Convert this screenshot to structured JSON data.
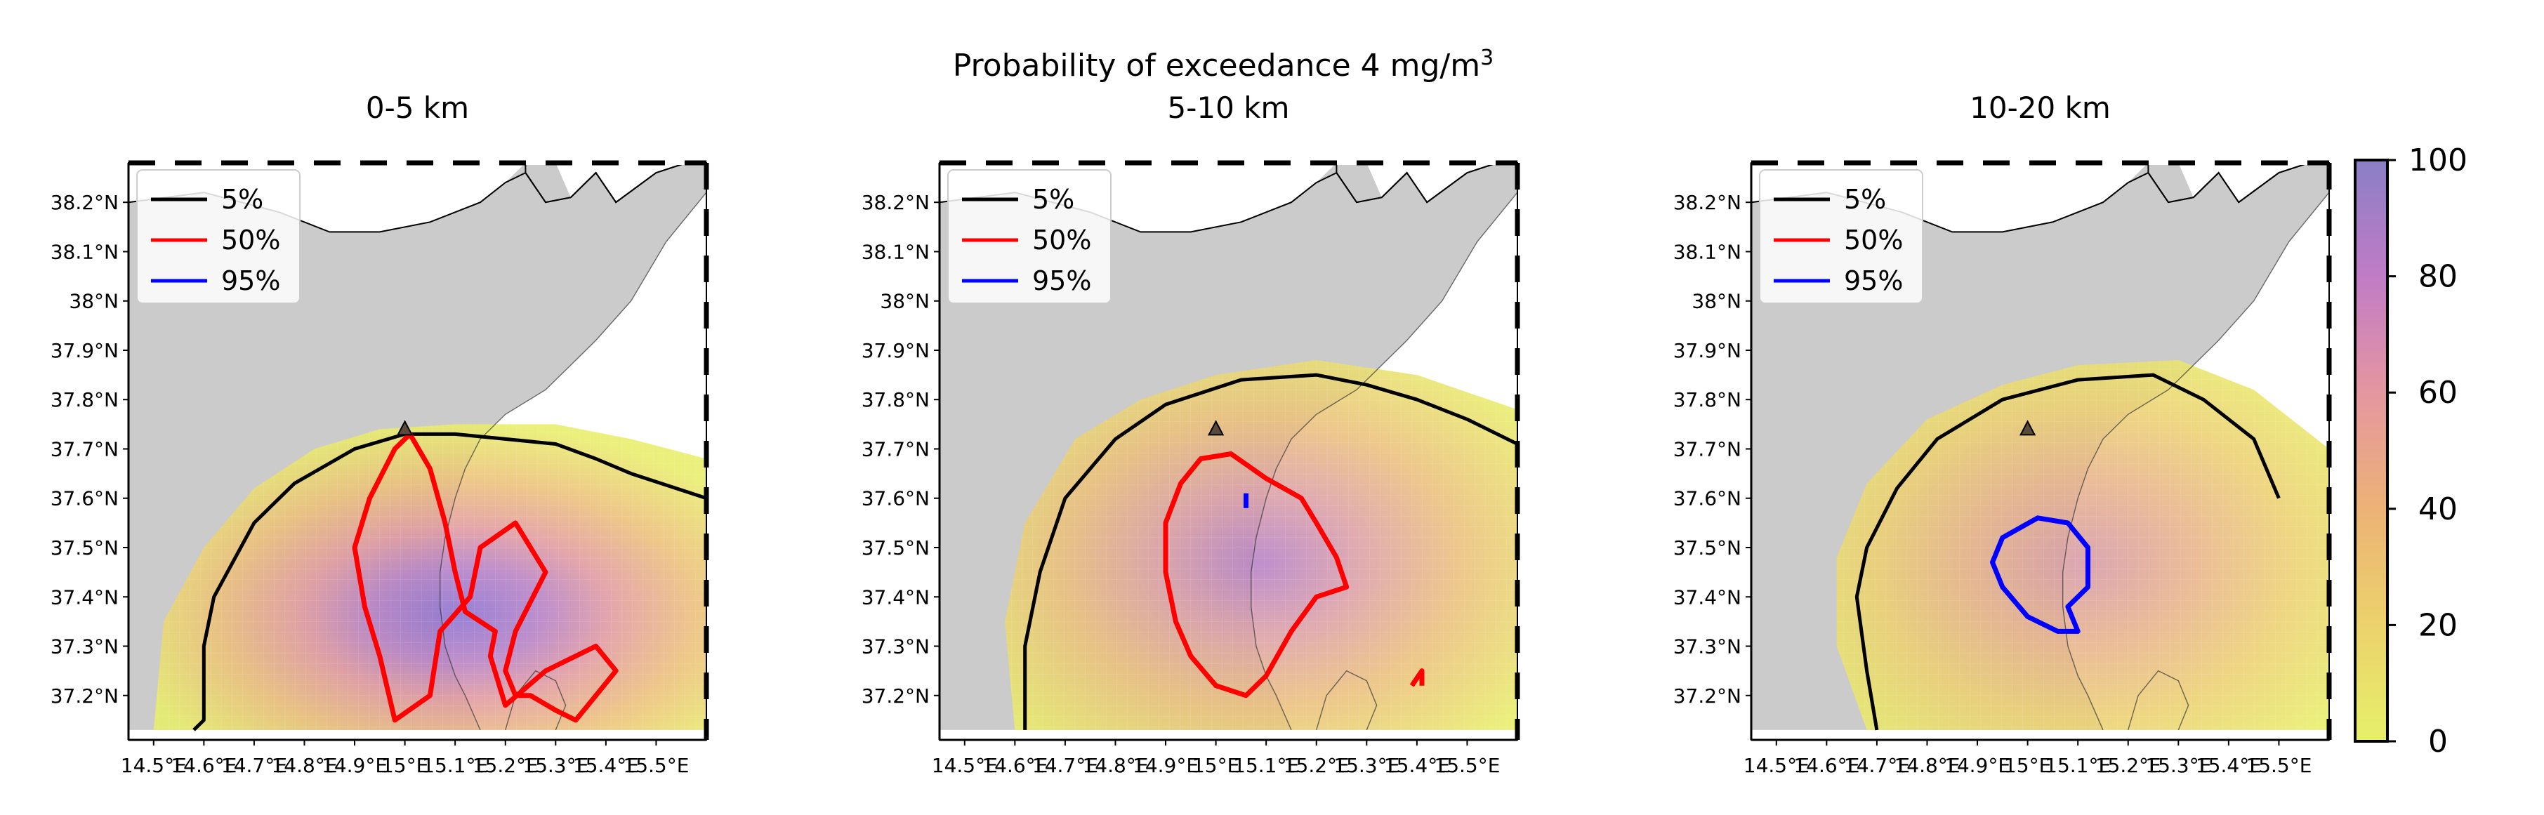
{
  "figure": {
    "suptitle": "Probability of exceedance 4 mg/m",
    "suptitle_sup": "3"
  },
  "chart_data": [
    {
      "type": "contour map",
      "title": "0-5 km",
      "xlabel": "",
      "ylabel": "",
      "lon_range": [
        14.45,
        15.6
      ],
      "lat_range": [
        37.11,
        38.28
      ],
      "x_ticks": [
        "14.5°E",
        "14.6°E",
        "14.7°E",
        "14.8°E",
        "14.9°E",
        "15°E",
        "15.1°E",
        "15.2°E",
        "15.3°E",
        "15.4°E",
        "15.5°E"
      ],
      "y_ticks": [
        "37.2°N",
        "37.3°N",
        "37.4°N",
        "37.5°N",
        "37.6°N",
        "37.7°N",
        "37.8°N",
        "37.9°N",
        "38°N",
        "38.1°N",
        "38.2°N"
      ],
      "legend": [
        {
          "label": "5%",
          "color": "#000000"
        },
        {
          "label": "50%",
          "color": "#ff0000"
        },
        {
          "label": "95%",
          "color": "#0000ff"
        }
      ],
      "contours": [
        {
          "level": "5%",
          "color": "#000000",
          "points": [
            [
              14.58,
              37.13
            ],
            [
              14.6,
              37.15
            ],
            [
              14.6,
              37.3
            ],
            [
              14.62,
              37.4
            ],
            [
              14.7,
              37.55
            ],
            [
              14.78,
              37.63
            ],
            [
              14.9,
              37.7
            ],
            [
              15,
              37.73
            ],
            [
              15.1,
              37.73
            ],
            [
              15.2,
              37.72
            ],
            [
              15.3,
              37.71
            ],
            [
              15.38,
              37.68
            ],
            [
              15.45,
              37.65
            ],
            [
              15.6,
              37.6
            ]
          ]
        },
        {
          "level": "50%",
          "color": "#ff0000",
          "points": [
            [
              15.01,
              37.73
            ],
            [
              15.05,
              37.66
            ],
            [
              15.08,
              37.55
            ],
            [
              15.1,
              37.45
            ],
            [
              15.12,
              37.37
            ],
            [
              15.18,
              37.33
            ],
            [
              15.17,
              37.28
            ],
            [
              15.2,
              37.18
            ],
            [
              15.28,
              37.25
            ],
            [
              15.38,
              37.3
            ],
            [
              15.42,
              37.25
            ],
            [
              15.38,
              37.2
            ],
            [
              15.34,
              37.15
            ],
            [
              15.3,
              37.17
            ],
            [
              15.25,
              37.2
            ],
            [
              15.22,
              37.2
            ],
            [
              15.2,
              37.25
            ],
            [
              15.22,
              37.33
            ],
            [
              15.28,
              37.45
            ],
            [
              15.22,
              37.55
            ],
            [
              15.15,
              37.5
            ],
            [
              15.13,
              37.4
            ],
            [
              15.07,
              37.33
            ],
            [
              15.05,
              37.2
            ],
            [
              14.98,
              37.15
            ],
            [
              14.95,
              37.28
            ],
            [
              14.92,
              37.38
            ],
            [
              14.9,
              37.5
            ],
            [
              14.93,
              37.6
            ],
            [
              14.98,
              37.7
            ],
            [
              15.01,
              37.73
            ]
          ]
        }
      ],
      "vent": {
        "lon": 15.0,
        "lat": 37.74
      }
    },
    {
      "type": "contour map",
      "title": "5-10 km",
      "xlabel": "",
      "ylabel": "",
      "lon_range": [
        14.45,
        15.6
      ],
      "lat_range": [
        37.11,
        38.28
      ],
      "x_ticks": [
        "14.5°E",
        "14.6°E",
        "14.7°E",
        "14.8°E",
        "14.9°E",
        "15°E",
        "15.1°E",
        "15.2°E",
        "15.3°E",
        "15.4°E",
        "15.5°E"
      ],
      "y_ticks": [
        "37.2°N",
        "37.3°N",
        "37.4°N",
        "37.5°N",
        "37.6°N",
        "37.7°N",
        "37.8°N",
        "37.9°N",
        "38°N",
        "38.1°N",
        "38.2°N"
      ],
      "legend": [
        {
          "label": "5%",
          "color": "#000000"
        },
        {
          "label": "50%",
          "color": "#ff0000"
        },
        {
          "label": "95%",
          "color": "#0000ff"
        }
      ],
      "contours": [
        {
          "level": "5%",
          "color": "#000000",
          "points": [
            [
              14.62,
              37.13
            ],
            [
              14.62,
              37.3
            ],
            [
              14.65,
              37.45
            ],
            [
              14.7,
              37.6
            ],
            [
              14.8,
              37.72
            ],
            [
              14.9,
              37.79
            ],
            [
              15.05,
              37.84
            ],
            [
              15.2,
              37.85
            ],
            [
              15.3,
              37.83
            ],
            [
              15.4,
              37.8
            ],
            [
              15.5,
              37.76
            ],
            [
              15.6,
              37.71
            ]
          ]
        },
        {
          "level": "50%",
          "color": "#ff0000",
          "points": [
            [
              14.97,
              37.68
            ],
            [
              15.03,
              37.69
            ],
            [
              15.1,
              37.64
            ],
            [
              15.17,
              37.6
            ],
            [
              15.2,
              37.55
            ],
            [
              15.24,
              37.48
            ],
            [
              15.26,
              37.42
            ],
            [
              15.2,
              37.4
            ],
            [
              15.15,
              37.33
            ],
            [
              15.1,
              37.24
            ],
            [
              15.06,
              37.2
            ],
            [
              15.0,
              37.22
            ],
            [
              14.95,
              37.28
            ],
            [
              14.92,
              37.35
            ],
            [
              14.9,
              37.45
            ],
            [
              14.9,
              37.55
            ],
            [
              14.93,
              37.63
            ],
            [
              14.97,
              37.68
            ]
          ]
        },
        {
          "level": "50%",
          "color": "#ff0000",
          "points": [
            [
              15.39,
              37.22
            ],
            [
              15.41,
              37.25
            ],
            [
              15.41,
              37.22
            ]
          ]
        },
        {
          "level": "95%",
          "color": "#0000ff",
          "points": [
            [
              15.06,
              37.61
            ],
            [
              15.06,
              37.58
            ]
          ]
        }
      ],
      "vent": {
        "lon": 15.0,
        "lat": 37.74
      }
    },
    {
      "type": "contour map",
      "title": "10-20 km",
      "xlabel": "",
      "ylabel": "",
      "lon_range": [
        14.45,
        15.6
      ],
      "lat_range": [
        37.11,
        38.28
      ],
      "x_ticks": [
        "14.5°E",
        "14.6°E",
        "14.7°E",
        "14.8°E",
        "14.9°E",
        "15°E",
        "15.1°E",
        "15.2°E",
        "15.3°E",
        "15.4°E",
        "15.5°E"
      ],
      "y_ticks": [
        "37.2°N",
        "37.3°N",
        "37.4°N",
        "37.5°N",
        "37.6°N",
        "37.7°N",
        "37.8°N",
        "37.9°N",
        "38°N",
        "38.1°N",
        "38.2°N"
      ],
      "legend": [
        {
          "label": "5%",
          "color": "#000000"
        },
        {
          "label": "50%",
          "color": "#ff0000"
        },
        {
          "label": "95%",
          "color": "#0000ff"
        }
      ],
      "contours": [
        {
          "level": "5%",
          "color": "#000000",
          "points": [
            [
              14.7,
              37.13
            ],
            [
              14.68,
              37.25
            ],
            [
              14.66,
              37.4
            ],
            [
              14.68,
              37.5
            ],
            [
              14.74,
              37.62
            ],
            [
              14.82,
              37.72
            ],
            [
              14.95,
              37.8
            ],
            [
              15.1,
              37.84
            ],
            [
              15.25,
              37.85
            ],
            [
              15.35,
              37.8
            ],
            [
              15.45,
              37.72
            ],
            [
              15.5,
              37.6
            ]
          ]
        },
        {
          "level": "95%",
          "color": "#0000ff",
          "points": [
            [
              14.95,
              37.52
            ],
            [
              15.02,
              37.56
            ],
            [
              15.08,
              37.55
            ],
            [
              15.12,
              37.5
            ],
            [
              15.12,
              37.42
            ],
            [
              15.08,
              37.38
            ],
            [
              15.1,
              37.33
            ],
            [
              15.06,
              37.33
            ],
            [
              15.0,
              37.36
            ],
            [
              14.95,
              37.42
            ],
            [
              14.93,
              37.47
            ],
            [
              14.95,
              37.52
            ]
          ]
        }
      ],
      "vent": {
        "lon": 15.0,
        "lat": 37.74
      }
    }
  ],
  "colorbar": {
    "ticks": [
      "0",
      "20",
      "40",
      "60",
      "80",
      "100"
    ],
    "range": [
      0,
      100
    ],
    "colors": [
      "#e6f06a",
      "#ecd26c",
      "#ecb276",
      "#e596a0",
      "#d27ec0",
      "#a57ccc",
      "#8a7fc6"
    ]
  }
}
